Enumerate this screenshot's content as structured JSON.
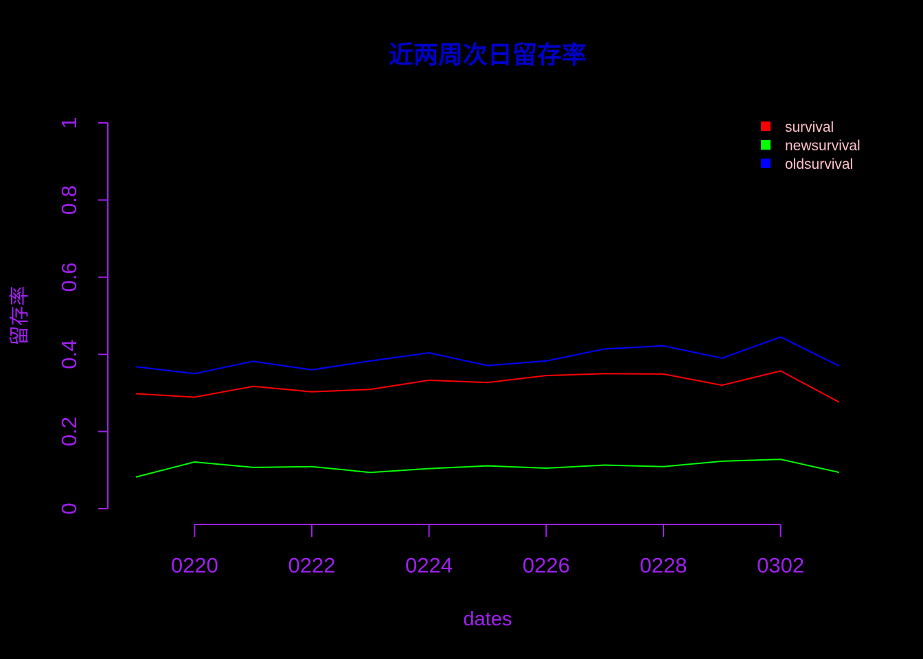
{
  "chart_data": {
    "type": "line",
    "title": "近两周次日留存率",
    "xlabel": "dates",
    "ylabel": "留存率",
    "x": [
      "0219",
      "0220",
      "0221",
      "0222",
      "0223",
      "0224",
      "0225",
      "0226",
      "0227",
      "0228",
      "0301",
      "0302",
      "0303"
    ],
    "x_tick_labels": [
      "0220",
      "0222",
      "0224",
      "0226",
      "0228",
      "0302"
    ],
    "y_tick_labels": [
      "0",
      "0.2",
      "0.4",
      "0.6",
      "0.8",
      "1"
    ],
    "ylim": [
      0,
      1
    ],
    "grid": false,
    "legend_position": "top-right",
    "series": [
      {
        "name": "survival",
        "color": "#ff0000",
        "values": [
          0.298,
          0.289,
          0.317,
          0.303,
          0.309,
          0.333,
          0.327,
          0.345,
          0.35,
          0.349,
          0.32,
          0.357,
          0.276
        ]
      },
      {
        "name": "newsurvival",
        "color": "#00ff00",
        "values": [
          0.082,
          0.121,
          0.107,
          0.109,
          0.094,
          0.104,
          0.111,
          0.105,
          0.113,
          0.109,
          0.123,
          0.128,
          0.094
        ]
      },
      {
        "name": "oldsurvival",
        "color": "#0000ff",
        "values": [
          0.368,
          0.35,
          0.382,
          0.36,
          0.383,
          0.404,
          0.371,
          0.383,
          0.414,
          0.422,
          0.39,
          0.445,
          0.37
        ]
      }
    ],
    "colors": {
      "title": "#0000cc",
      "axis": "#a020f0",
      "legend_text": "#ffc0cb",
      "background": "#000000"
    }
  }
}
